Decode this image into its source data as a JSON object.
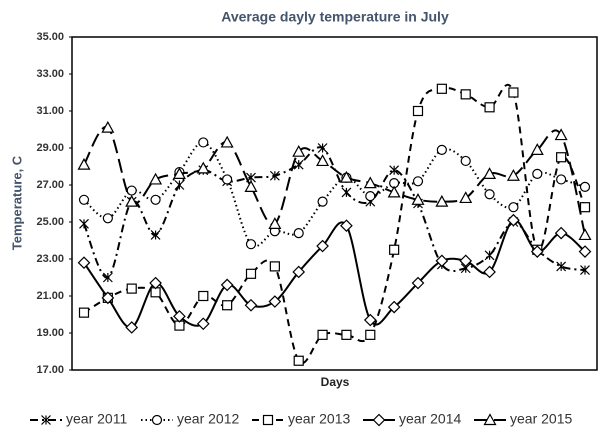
{
  "chart_data": {
    "type": "line",
    "title": "Average dayly temperature in July",
    "x_label": "Days",
    "y_label": "Temperature, C",
    "categories": [
      null,
      null,
      null,
      null,
      null,
      null,
      null,
      null,
      null,
      null,
      null,
      null,
      null,
      null,
      null,
      null,
      null,
      null,
      null,
      null,
      null,
      null
    ],
    "ylim": [
      17,
      35
    ],
    "yticks": [
      {
        "value": 17,
        "label": "17.00"
      },
      {
        "value": 19,
        "label": "19.00"
      },
      {
        "value": 21,
        "label": "21.00"
      },
      {
        "value": 23,
        "label": "23.00"
      },
      {
        "value": 25,
        "label": "25.00"
      },
      {
        "value": 27,
        "label": "27.00"
      },
      {
        "value": 29,
        "label": "29.00"
      },
      {
        "value": 31,
        "label": "31.00"
      },
      {
        "value": 33,
        "label": "33.00"
      },
      {
        "value": 35,
        "label": "35.00"
      }
    ],
    "grid": false,
    "smooth": true,
    "legend": "bottom",
    "series": [
      {
        "name": "year 2011",
        "color": "#000000",
        "dash": "dash-dot",
        "marker": "asterisk",
        "values": [
          24.9,
          22.0,
          26.1,
          24.3,
          27.0,
          27.8,
          27.2,
          27.4,
          27.5,
          28.1,
          29.0,
          26.6,
          26.1,
          27.8,
          26.0,
          22.7,
          22.5,
          23.2,
          25.0,
          23.5,
          22.6,
          22.4
        ]
      },
      {
        "name": "year 2012",
        "color": "#000000",
        "dash": "dot",
        "marker": "circle",
        "values": [
          26.2,
          25.2,
          26.7,
          26.2,
          27.7,
          29.3,
          27.3,
          23.8,
          24.5,
          24.4,
          26.1,
          27.4,
          26.4,
          27.1,
          27.2,
          28.9,
          28.3,
          26.5,
          25.8,
          27.6,
          27.3,
          26.9
        ]
      },
      {
        "name": "year 2013",
        "color": "#000000",
        "dash": "dash",
        "marker": "square",
        "values": [
          20.1,
          20.9,
          21.4,
          21.2,
          19.4,
          21.0,
          20.5,
          22.2,
          22.6,
          17.5,
          18.9,
          18.9,
          18.9,
          23.5,
          31.0,
          32.2,
          31.9,
          31.2,
          32.0,
          23.5,
          28.5,
          25.8
        ]
      },
      {
        "name": "year 2014",
        "color": "#000000",
        "dash": "solid",
        "marker": "diamond",
        "values": [
          22.8,
          20.9,
          19.3,
          21.7,
          19.9,
          19.5,
          21.6,
          20.5,
          20.7,
          22.3,
          23.7,
          24.8,
          19.7,
          20.4,
          21.7,
          22.9,
          22.9,
          22.3,
          25.1,
          23.4,
          24.4,
          23.4
        ]
      },
      {
        "name": "year 2015",
        "color": "#000000",
        "dash": "long-dash",
        "marker": "triangle",
        "values": [
          28.1,
          30.1,
          26.1,
          27.3,
          27.6,
          27.9,
          29.3,
          26.9,
          24.9,
          28.8,
          28.3,
          27.4,
          27.1,
          26.6,
          26.2,
          26.1,
          26.3,
          27.6,
          27.5,
          28.9,
          29.7,
          24.3
        ]
      }
    ]
  }
}
